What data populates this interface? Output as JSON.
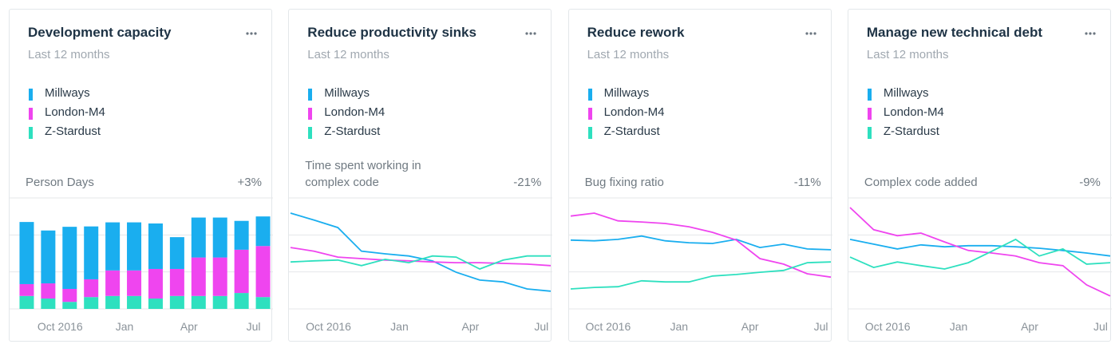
{
  "chart_data": [
    {
      "type": "bar",
      "title": "Development capacity",
      "subtitle": "Last 12 months",
      "metric": "Person Days",
      "change": "+3%",
      "categories": [
        null,
        null,
        "Oct 2016",
        null,
        null,
        "Jan",
        null,
        null,
        "Apr",
        null,
        null,
        "Jul"
      ],
      "ylim": [
        0,
        3
      ],
      "yticks": [
        0,
        1,
        2,
        3
      ],
      "grid": true,
      "stacked": true,
      "series": [
        {
          "name": "Millways",
          "color": "#1aaeef",
          "values": [
            1.68,
            1.43,
            1.68,
            1.43,
            1.3,
            1.3,
            1.23,
            0.86,
            1.08,
            1.08,
            0.78,
            0.8
          ]
        },
        {
          "name": "London-M4",
          "color": "#ef45ef",
          "values": [
            0.32,
            0.41,
            0.35,
            0.48,
            0.69,
            0.69,
            0.8,
            0.73,
            1.04,
            1.04,
            1.17,
            1.38
          ]
        },
        {
          "name": "Z-Stardust",
          "color": "#2ee0bf",
          "values": [
            0.35,
            0.28,
            0.19,
            0.32,
            0.35,
            0.35,
            0.28,
            0.35,
            0.35,
            0.35,
            0.43,
            0.32
          ]
        }
      ]
    },
    {
      "type": "line",
      "title": "Reduce productivity sinks",
      "subtitle": "Last 12 months",
      "metric": "Time spent working in complex code",
      "change": "-21%",
      "categories": [
        null,
        null,
        "Oct 2016",
        null,
        null,
        "Jan",
        null,
        null,
        "Apr",
        null,
        null,
        "Jul"
      ],
      "ylim": [
        0,
        3
      ],
      "yticks": [
        0,
        1,
        2,
        3
      ],
      "grid": true,
      "series": [
        {
          "name": "Millways",
          "color": "#1aaeef",
          "values": [
            2.59,
            2.4,
            2.2,
            1.56,
            1.49,
            1.43,
            1.3,
            0.99,
            0.78,
            0.73,
            0.54,
            0.48
          ]
        },
        {
          "name": "London-M4",
          "color": "#ef45ef",
          "values": [
            1.66,
            1.56,
            1.4,
            1.36,
            1.32,
            1.3,
            1.27,
            1.25,
            1.25,
            1.23,
            1.21,
            1.17
          ]
        },
        {
          "name": "Z-Stardust",
          "color": "#2ee0bf",
          "values": [
            1.27,
            1.3,
            1.32,
            1.17,
            1.34,
            1.25,
            1.43,
            1.4,
            1.08,
            1.32,
            1.43,
            1.43
          ]
        }
      ]
    },
    {
      "type": "line",
      "title": "Reduce rework",
      "subtitle": "Last 12 months",
      "metric": "Bug fixing ratio",
      "change": "-11%",
      "categories": [
        null,
        null,
        "Oct 2016",
        null,
        null,
        "Jan",
        null,
        null,
        "Apr",
        null,
        null,
        "Jul"
      ],
      "ylim": [
        0,
        3
      ],
      "yticks": [
        0,
        1,
        2,
        3
      ],
      "grid": true,
      "series": [
        {
          "name": "Millways",
          "color": "#1aaeef",
          "values": [
            1.86,
            1.84,
            1.88,
            1.97,
            1.84,
            1.79,
            1.77,
            1.88,
            1.66,
            1.75,
            1.62,
            1.6
          ]
        },
        {
          "name": "London-M4",
          "color": "#ef45ef",
          "values": [
            2.51,
            2.59,
            2.38,
            2.35,
            2.31,
            2.22,
            2.07,
            1.86,
            1.36,
            1.21,
            0.95,
            0.86
          ]
        },
        {
          "name": "Z-Stardust",
          "color": "#2ee0bf",
          "values": [
            0.54,
            0.58,
            0.6,
            0.76,
            0.73,
            0.73,
            0.89,
            0.93,
            0.99,
            1.04,
            1.25,
            1.27
          ]
        }
      ]
    },
    {
      "type": "line",
      "title": "Manage new technical debt",
      "subtitle": "Last 12 months",
      "metric": "Complex code added",
      "change": "-9%",
      "categories": [
        null,
        null,
        "Oct 2016",
        null,
        null,
        "Jan",
        null,
        null,
        "Apr",
        null,
        null,
        "Jul"
      ],
      "ylim": [
        0,
        3
      ],
      "yticks": [
        0,
        1,
        2,
        3
      ],
      "grid": true,
      "series": [
        {
          "name": "Millways",
          "color": "#1aaeef",
          "values": [
            1.88,
            1.75,
            1.62,
            1.73,
            1.68,
            1.71,
            1.71,
            1.68,
            1.64,
            1.58,
            1.51,
            1.43
          ]
        },
        {
          "name": "London-M4",
          "color": "#ef45ef",
          "values": [
            2.74,
            2.14,
            1.98,
            2.05,
            1.81,
            1.58,
            1.51,
            1.43,
            1.25,
            1.17,
            0.65,
            0.35
          ]
        },
        {
          "name": "Z-Stardust",
          "color": "#2ee0bf",
          "values": [
            1.4,
            1.12,
            1.27,
            1.17,
            1.08,
            1.25,
            1.56,
            1.88,
            1.43,
            1.62,
            1.21,
            1.25
          ]
        }
      ]
    }
  ]
}
